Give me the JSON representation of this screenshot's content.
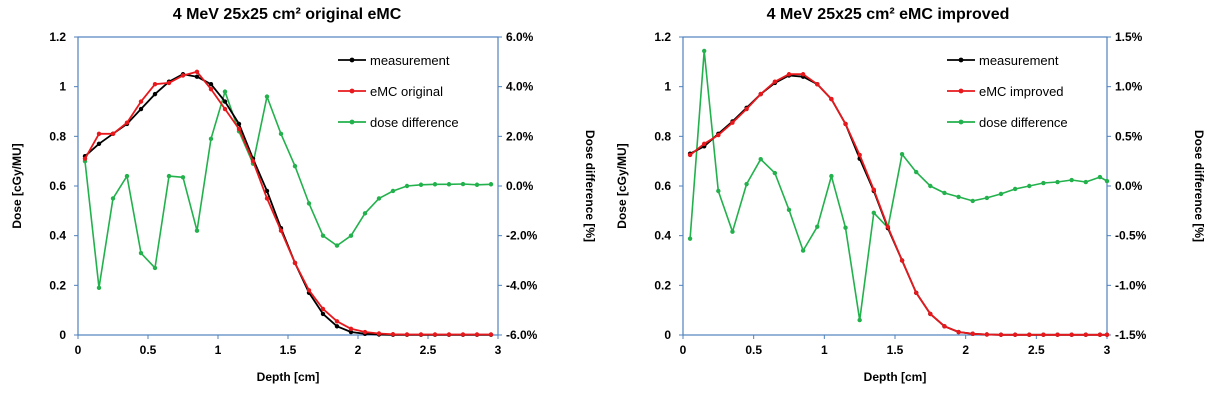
{
  "chart_data": [
    {
      "type": "line",
      "title": "4 MeV 25x25 cm² original eMC",
      "xlabel": "Depth [cm]",
      "ylabel": "Dose [cGy/MU]",
      "y2label": "Dose difference [%]",
      "xlim": [
        0,
        3
      ],
      "ylim": [
        0,
        1.2
      ],
      "y2lim": [
        -6,
        6
      ],
      "xticks": [
        "0",
        "0.5",
        "1",
        "1.5",
        "2",
        "2.5",
        "3"
      ],
      "yticks": [
        "0",
        "0.2",
        "0.4",
        "0.6",
        "0.8",
        "1",
        "1.2"
      ],
      "y2ticks": [
        "-6.0%",
        "-4.0%",
        "-2.0%",
        "0.0%",
        "2.0%",
        "4.0%",
        "6.0%"
      ],
      "legend_position": "top-right",
      "colors": {
        "measurement": "#000000",
        "emc": "#e8191d",
        "diff": "#22b14c",
        "frame": "#4f81bd"
      },
      "x": [
        0.05,
        0.15,
        0.25,
        0.35,
        0.45,
        0.55,
        0.65,
        0.75,
        0.85,
        0.95,
        1.05,
        1.15,
        1.25,
        1.35,
        1.45,
        1.55,
        1.65,
        1.75,
        1.85,
        1.95,
        2.05,
        2.15,
        2.25,
        2.35,
        2.45,
        2.55,
        2.65,
        2.75,
        2.85,
        2.95
      ],
      "series": [
        {
          "name": "measurement",
          "axis": "left",
          "values": [
            0.72,
            0.77,
            0.81,
            0.85,
            0.91,
            0.97,
            1.02,
            1.05,
            1.04,
            1.01,
            0.94,
            0.85,
            0.71,
            0.58,
            0.43,
            0.29,
            0.17,
            0.085,
            0.035,
            0.012,
            0.005,
            0.002,
            0.001,
            0.001,
            0.001,
            0.001,
            0.001,
            0.001,
            0.001,
            0.001
          ]
        },
        {
          "name": "eMC original",
          "axis": "left",
          "values": [
            0.71,
            0.81,
            0.81,
            0.855,
            0.94,
            1.01,
            1.015,
            1.045,
            1.06,
            0.99,
            0.91,
            0.83,
            0.7,
            0.55,
            0.42,
            0.29,
            0.18,
            0.105,
            0.055,
            0.025,
            0.012,
            0.006,
            0.003,
            0.002,
            0.002,
            0.002,
            0.002,
            0.002,
            0.002,
            0.002
          ]
        },
        {
          "name": "dose difference",
          "axis": "right",
          "values": [
            1.0,
            -4.1,
            -0.5,
            0.4,
            -2.7,
            -3.3,
            0.4,
            0.35,
            -1.8,
            1.9,
            3.8,
            2.2,
            0.9,
            3.6,
            2.1,
            0.8,
            -0.7,
            -2.0,
            -2.4,
            -2.0,
            -1.1,
            -0.5,
            -0.2,
            0.0,
            0.05,
            0.07,
            0.07,
            0.08,
            0.05,
            0.07
          ]
        }
      ]
    },
    {
      "type": "line",
      "title": "4 MeV 25x25 cm² eMC improved",
      "xlabel": "Depth [cm]",
      "ylabel": "Dose [cGy/MU]",
      "y2label": "Dose difference [%]",
      "xlim": [
        0,
        3
      ],
      "ylim": [
        0,
        1.2
      ],
      "y2lim": [
        -1.5,
        1.5
      ],
      "xticks": [
        "0",
        "0.5",
        "1",
        "1.5",
        "2",
        "2.5",
        "3"
      ],
      "yticks": [
        "0",
        "0.2",
        "0.4",
        "0.6",
        "0.8",
        "1",
        "1.2"
      ],
      "y2ticks": [
        "-1.5%",
        "-1.0%",
        "-0.5%",
        "0.0%",
        "0.5%",
        "1.0%",
        "1.5%"
      ],
      "legend_position": "top-right",
      "colors": {
        "measurement": "#000000",
        "emc": "#e8191d",
        "diff": "#22b14c",
        "frame": "#4f81bd"
      },
      "x": [
        0.05,
        0.15,
        0.25,
        0.35,
        0.45,
        0.55,
        0.65,
        0.75,
        0.85,
        0.95,
        1.05,
        1.15,
        1.25,
        1.35,
        1.45,
        1.55,
        1.65,
        1.75,
        1.85,
        1.95,
        2.05,
        2.15,
        2.25,
        2.35,
        2.45,
        2.55,
        2.65,
        2.75,
        2.85,
        2.95,
        3.0
      ],
      "series": [
        {
          "name": "measurement",
          "axis": "left",
          "values": [
            0.73,
            0.76,
            0.81,
            0.86,
            0.915,
            0.97,
            1.015,
            1.045,
            1.04,
            1.01,
            0.95,
            0.85,
            0.71,
            0.58,
            0.43,
            0.3,
            0.17,
            0.085,
            0.035,
            0.012,
            0.005,
            0.002,
            0.001,
            0.001,
            0.001,
            0.001,
            0.001,
            0.001,
            0.001,
            0.001,
            0.001
          ]
        },
        {
          "name": "eMC improved",
          "axis": "left",
          "values": [
            0.725,
            0.77,
            0.805,
            0.855,
            0.91,
            0.97,
            1.02,
            1.05,
            1.05,
            1.01,
            0.95,
            0.85,
            0.725,
            0.585,
            0.435,
            0.3,
            0.17,
            0.085,
            0.035,
            0.012,
            0.005,
            0.002,
            0.001,
            0.001,
            0.001,
            0.001,
            0.001,
            0.001,
            0.001,
            0.001,
            0.001
          ]
        },
        {
          "name": "dose difference",
          "axis": "right",
          "values": [
            -0.53,
            1.36,
            -0.05,
            -0.46,
            0.02,
            0.27,
            0.13,
            -0.24,
            -0.65,
            -0.41,
            0.1,
            -0.42,
            -1.35,
            -0.27,
            -0.42,
            0.32,
            0.14,
            0.0,
            -0.07,
            -0.11,
            -0.15,
            -0.12,
            -0.08,
            -0.03,
            0.0,
            0.03,
            0.04,
            0.06,
            0.04,
            0.09,
            0.05
          ]
        }
      ]
    }
  ]
}
